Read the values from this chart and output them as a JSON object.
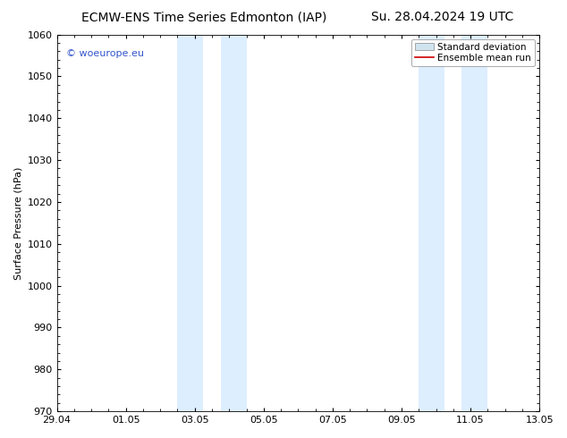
{
  "title_left": "ECMW-ENS Time Series Edmonton (IAP)",
  "title_right": "Su. 28.04.2024 19 UTC",
  "ylabel": "Surface Pressure (hPa)",
  "ylim": [
    970,
    1060
  ],
  "yticks": [
    970,
    980,
    990,
    1000,
    1010,
    1020,
    1030,
    1040,
    1050,
    1060
  ],
  "xlim_start": 0.0,
  "xlim_end": 14.0,
  "xtick_positions": [
    0,
    2,
    4,
    6,
    8,
    10,
    12,
    14
  ],
  "xtick_labels": [
    "29.04",
    "01.05",
    "03.05",
    "05.05",
    "07.05",
    "09.05",
    "11.05",
    "13.05"
  ],
  "shaded_bands": [
    {
      "xmin": 3.5,
      "xmax": 4.25
    },
    {
      "xmin": 4.75,
      "xmax": 5.5
    },
    {
      "xmin": 10.5,
      "xmax": 11.25
    },
    {
      "xmin": 11.75,
      "xmax": 12.5
    }
  ],
  "shade_color": "#ddeeff",
  "watermark_text": "© woeurope.eu",
  "watermark_color": "#3355cc",
  "legend_label1": "Standard deviation",
  "legend_label2": "Ensemble mean run",
  "legend_patch_color": "#d0e4f0",
  "legend_line_color": "#cc0000",
  "background_color": "#ffffff",
  "title_fontsize": 10,
  "axis_fontsize": 8,
  "tick_fontsize": 8,
  "watermark_fontsize": 8,
  "legend_fontsize": 7.5
}
